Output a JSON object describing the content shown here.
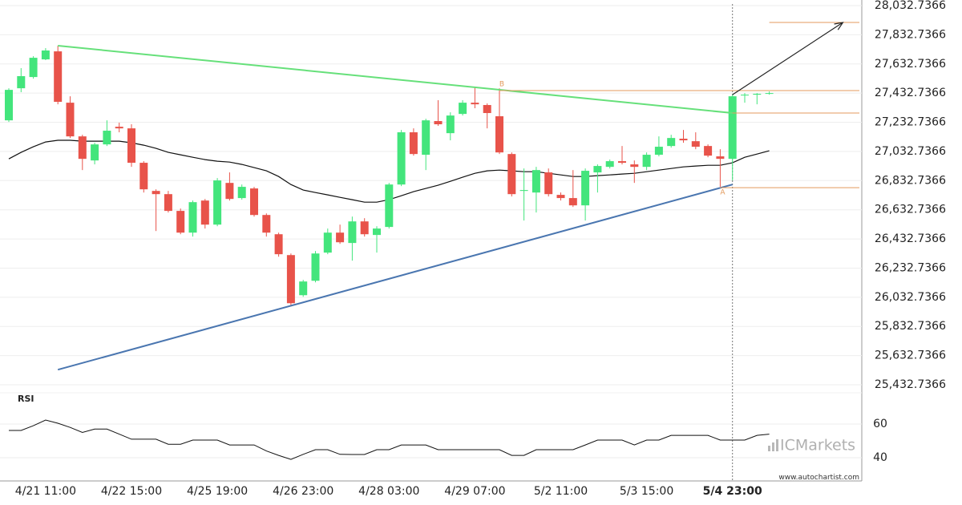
{
  "chart_data": {
    "type": "candlestick",
    "categories": [
      null,
      null,
      null,
      "4/21 11:00",
      null,
      null,
      null,
      null,
      null,
      null,
      "4/22 15:00",
      null,
      null,
      null,
      null,
      null,
      null,
      "4/25 19:00",
      null,
      null,
      null,
      null,
      null,
      null,
      "4/26 23:00",
      null,
      null,
      null,
      null,
      null,
      null,
      "4/28 03:00",
      null,
      null,
      null,
      null,
      null,
      null,
      "4/29 07:00",
      null,
      null,
      null,
      null,
      null,
      null,
      "5/2 11:00",
      null,
      null,
      null,
      null,
      null,
      null,
      "5/3 15:00",
      null,
      null,
      null,
      null,
      null,
      null,
      "5/4 23:00",
      null,
      null,
      null
    ],
    "open": [
      27246,
      27466,
      27543,
      27664,
      27719,
      27367,
      27136,
      26971,
      27081,
      27202,
      27191,
      26955,
      26762,
      26740,
      26625,
      26476,
      26696,
      26531,
      26817,
      26713,
      26779,
      26597,
      26465,
      26322,
      26047,
      26146,
      26339,
      26476,
      26405,
      26553,
      26460,
      26515,
      26806,
      27164,
      27010,
      27241,
      27158,
      27290,
      27367,
      27351,
      27274,
      27015,
      26762,
      26751,
      26889,
      26735,
      26713,
      26663,
      26889,
      26927,
      26966,
      26944,
      26927,
      27010,
      27070,
      27120,
      27103,
      27070,
      26999,
      26982,
      27417,
      27422,
      27433
    ],
    "high": [
      27466,
      27604,
      27686,
      27741,
      27758,
      27411,
      27147,
      27092,
      27246,
      27230,
      27219,
      26966,
      26773,
      26762,
      26641,
      26696,
      26707,
      26850,
      26889,
      26806,
      26790,
      26608,
      26476,
      26333,
      26152,
      26350,
      26504,
      26531,
      26586,
      26575,
      26520,
      26817,
      27180,
      27191,
      27257,
      27384,
      27301,
      27384,
      27477,
      27362,
      27466,
      27026,
      26916,
      26927,
      26916,
      26751,
      26905,
      26916,
      26944,
      26977,
      27070,
      26971,
      27026,
      27136,
      27147,
      27180,
      27164,
      27081,
      27048,
      27422,
      27433,
      27433,
      27444
    ],
    "low": [
      27235,
      27439,
      27532,
      27659,
      27356,
      27125,
      26905,
      26944,
      27070,
      27164,
      26927,
      26751,
      26487,
      26614,
      26465,
      26449,
      26504,
      26520,
      26696,
      26702,
      26586,
      26449,
      26311,
      25970,
      26036,
      26135,
      26328,
      26399,
      26284,
      26449,
      26339,
      26504,
      26795,
      27004,
      26905,
      27208,
      27109,
      27279,
      27329,
      27191,
      27015,
      26724,
      26559,
      26614,
      26724,
      26696,
      26652,
      26559,
      26751,
      26916,
      26944,
      26817,
      26905,
      26999,
      27059,
      27092,
      27048,
      26993,
      26790,
      26834,
      27367,
      27356,
      27422
    ],
    "close": [
      27455,
      27549,
      27675,
      27725,
      27373,
      27136,
      26982,
      27081,
      27175,
      27191,
      26955,
      26773,
      26740,
      26625,
      26476,
      26685,
      26531,
      26834,
      26707,
      26790,
      26597,
      26476,
      26328,
      25992,
      26141,
      26333,
      26476,
      26410,
      26553,
      26465,
      26504,
      26806,
      27164,
      27015,
      27246,
      27219,
      27279,
      27367,
      27356,
      27296,
      27026,
      26740,
      26768,
      26905,
      26740,
      26713,
      26663,
      26900,
      26933,
      26966,
      26955,
      26927,
      27010,
      27065,
      27125,
      27109,
      27065,
      27004,
      26982,
      27411,
      27422,
      27428,
      27433
    ],
    "up_color": "#43e57c",
    "down_color": "#e8534a",
    "moving_average": {
      "color": "#111111",
      "values": [
        26982,
        27026,
        27065,
        27098,
        27109,
        27109,
        27103,
        27103,
        27103,
        27103,
        27092,
        27076,
        27054,
        27026,
        27010,
        26993,
        26977,
        26966,
        26960,
        26944,
        26922,
        26900,
        26861,
        26806,
        26768,
        26751,
        26735,
        26718,
        26702,
        26685,
        26685,
        26702,
        26729,
        26757,
        26779,
        26801,
        26828,
        26856,
        26883,
        26900,
        26905,
        26900,
        26894,
        26894,
        26883,
        26872,
        26861,
        26861,
        26867,
        26872,
        26878,
        26883,
        26894,
        26905,
        26916,
        26927,
        26933,
        26938,
        26938,
        26955,
        26993,
        27015,
        27037
      ]
    },
    "trend_lines": [
      {
        "color": "#66e07a",
        "x": [
          4,
          59
        ],
        "values": [
          27758,
          27296
        ]
      },
      {
        "color": "#4a76b0",
        "x": [
          4,
          59
        ],
        "values": [
          25536,
          26806
        ]
      }
    ],
    "levels": [
      {
        "color": "#e39a5c",
        "x": 62,
        "value": 27917
      },
      {
        "color": "#e39a5c",
        "x": 40,
        "value": 27450
      },
      {
        "color": "#e39a5c",
        "x": 59,
        "value": 27296
      },
      {
        "color": "#e39a5c",
        "x": 58,
        "value": 26784
      }
    ],
    "points": [
      {
        "label": "B",
        "x": 40,
        "value": 27466
      },
      {
        "label": "A",
        "x": 58,
        "value": 26790
      }
    ],
    "arrow": {
      "color": "#222222",
      "x": [
        59,
        68
      ],
      "values": [
        27422,
        27917
      ]
    },
    "current_index": 59,
    "ylim": [
      25377.8,
      28071.2
    ],
    "yticks": [
      {
        "value": 28032.7366,
        "label": "28,032.7366"
      },
      {
        "value": 27832.7366,
        "label": "27,832.7366"
      },
      {
        "value": 27632.7366,
        "label": "27,632.7366"
      },
      {
        "value": 27432.7366,
        "label": "27,432.7366"
      },
      {
        "value": 27232.7366,
        "label": "27,232.7366"
      },
      {
        "value": 27032.7366,
        "label": "27,032.7366"
      },
      {
        "value": 26832.7366,
        "label": "26,832.7366"
      },
      {
        "value": 26632.7366,
        "label": "26,632.7366"
      },
      {
        "value": 26432.7366,
        "label": "26,432.7366"
      },
      {
        "value": 26232.7366,
        "label": "26,232.7366"
      },
      {
        "value": 26032.7366,
        "label": "26,032.7366"
      },
      {
        "value": 25832.7366,
        "label": "25,832.7366"
      },
      {
        "value": 25632.7366,
        "label": "25,632.7366"
      },
      {
        "value": 25432.7366,
        "label": "25,432.7366"
      }
    ],
    "grid": true,
    "rsi": {
      "label": "RSI",
      "color": "#111111",
      "values": [
        56.2,
        56.2,
        59,
        62.4,
        60.5,
        58,
        55,
        57,
        57,
        54,
        51,
        51,
        51,
        48,
        48,
        50.5,
        50.5,
        50.5,
        47.6,
        47.6,
        47.6,
        44,
        41.4,
        39,
        42,
        44.8,
        44.8,
        42,
        41.9,
        41.9,
        44.8,
        44.8,
        47.6,
        47.6,
        47.6,
        44.8,
        44.8,
        44.8,
        44.8,
        44.8,
        44.8,
        41.4,
        41.4,
        44.8,
        44.8,
        44.8,
        44.8,
        47.6,
        50.5,
        50.5,
        50.5,
        47.6,
        50.5,
        50.5,
        53.3,
        53.3,
        53.3,
        53.3,
        50.5,
        50.5,
        50.5,
        53.3,
        54
      ],
      "ylim": [
        26.2,
        78.6
      ],
      "yticks": [
        60,
        40
      ]
    },
    "watermark": "ICMarkets",
    "source": "www.autochartist.com"
  }
}
